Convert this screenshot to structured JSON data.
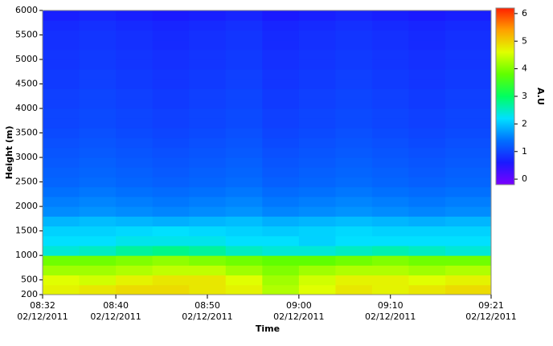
{
  "chart_data": {
    "type": "heatmap",
    "xlabel": "Time",
    "ylabel": "Height (m)",
    "colorbar_label": "A.U",
    "xlim": [
      "08:32",
      "09:21"
    ],
    "xticks": [
      {
        "time": "08:32",
        "date": "02/12/2011"
      },
      {
        "time": "08:40",
        "date": "02/12/2011"
      },
      {
        "time": "08:50",
        "date": "02/12/2011"
      },
      {
        "time": "09:00",
        "date": "02/12/2011"
      },
      {
        "time": "09:10",
        "date": "02/12/2011"
      },
      {
        "time": "09:21",
        "date": "02/12/2011"
      }
    ],
    "ylim": [
      200,
      6000
    ],
    "yticks": [
      200,
      500,
      1000,
      1500,
      2000,
      2500,
      3000,
      3500,
      4000,
      4500,
      5000,
      5500,
      6000
    ],
    "zlim": [
      -0.2,
      6.2
    ],
    "zticks": [
      0,
      1,
      2,
      3,
      4,
      5,
      6
    ],
    "colorscale": [
      "#7a00ff",
      "#1a1aff",
      "#0070ff",
      "#00e0ff",
      "#00ff60",
      "#60ff00",
      "#e0ff00",
      "#ffa000",
      "#ff2000"
    ],
    "x": [
      "08:34",
      "08:38",
      "08:42",
      "08:46",
      "08:50",
      "08:54",
      "08:58",
      "09:02",
      "09:06",
      "09:10",
      "09:14",
      "09:18"
    ],
    "y": [
      300,
      500,
      700,
      900,
      1100,
      1300,
      1500,
      1700,
      1900,
      2100,
      2300,
      2500,
      2700,
      2900,
      3100,
      3300,
      3500,
      3700,
      3900,
      4100,
      4300,
      4500,
      4700,
      4900,
      5100,
      5300,
      5500,
      5700,
      5900
    ],
    "z": [
      [
        4.7,
        4.8,
        4.9,
        4.9,
        4.8,
        4.7,
        4.3,
        4.6,
        4.8,
        4.7,
        4.8,
        4.9
      ],
      [
        4.6,
        4.5,
        4.7,
        4.8,
        4.8,
        4.6,
        4.2,
        4.5,
        4.7,
        4.7,
        4.6,
        4.7
      ],
      [
        4.2,
        4.2,
        4.3,
        4.4,
        4.4,
        4.2,
        4.0,
        4.2,
        4.3,
        4.3,
        4.2,
        4.3
      ],
      [
        3.9,
        3.9,
        4.0,
        4.1,
        4.0,
        3.9,
        3.8,
        3.8,
        3.9,
        4.0,
        3.9,
        3.9
      ],
      [
        2.4,
        2.5,
        2.7,
        2.8,
        2.7,
        2.5,
        2.4,
        2.4,
        2.5,
        2.6,
        2.5,
        2.4
      ],
      [
        2.2,
        2.2,
        2.3,
        2.3,
        2.3,
        2.2,
        2.2,
        2.1,
        2.2,
        2.2,
        2.2,
        2.2
      ],
      [
        2.1,
        2.1,
        2.15,
        2.2,
        2.15,
        2.1,
        2.05,
        2.1,
        2.15,
        2.1,
        2.1,
        2.1
      ],
      [
        1.9,
        1.95,
        1.9,
        1.85,
        1.9,
        1.95,
        1.85,
        1.9,
        1.95,
        1.9,
        1.85,
        1.9
      ],
      [
        1.6,
        1.65,
        1.6,
        1.55,
        1.6,
        1.65,
        1.55,
        1.6,
        1.65,
        1.6,
        1.55,
        1.6
      ],
      [
        1.5,
        1.55,
        1.5,
        1.45,
        1.5,
        1.55,
        1.45,
        1.5,
        1.55,
        1.5,
        1.45,
        1.5
      ],
      [
        1.4,
        1.45,
        1.4,
        1.35,
        1.4,
        1.45,
        1.35,
        1.4,
        1.45,
        1.4,
        1.35,
        1.4
      ],
      [
        1.3,
        1.35,
        1.3,
        1.25,
        1.3,
        1.35,
        1.25,
        1.3,
        1.35,
        1.3,
        1.25,
        1.3
      ],
      [
        1.25,
        1.3,
        1.25,
        1.2,
        1.25,
        1.3,
        1.2,
        1.25,
        1.3,
        1.25,
        1.2,
        1.25
      ],
      [
        1.2,
        1.25,
        1.2,
        1.15,
        1.2,
        1.25,
        1.15,
        1.2,
        1.25,
        1.2,
        1.15,
        1.2
      ],
      [
        1.15,
        1.2,
        1.15,
        1.1,
        1.15,
        1.2,
        1.1,
        1.15,
        1.2,
        1.15,
        1.1,
        1.15
      ],
      [
        1.1,
        1.15,
        1.1,
        1.05,
        1.1,
        1.15,
        1.05,
        1.1,
        1.15,
        1.1,
        1.05,
        1.1
      ],
      [
        1.05,
        1.1,
        1.05,
        1.0,
        1.05,
        1.1,
        1.0,
        1.05,
        1.1,
        1.05,
        1.0,
        1.05
      ],
      [
        1.0,
        1.05,
        1.0,
        0.95,
        1.0,
        1.05,
        0.95,
        1.0,
        1.05,
        1.0,
        0.95,
        1.0
      ],
      [
        1.0,
        1.05,
        1.0,
        0.95,
        1.0,
        1.05,
        0.95,
        1.0,
        1.05,
        1.0,
        0.95,
        1.0
      ],
      [
        0.95,
        1.0,
        0.95,
        0.9,
        0.95,
        1.0,
        0.9,
        0.95,
        1.0,
        0.95,
        0.9,
        0.95
      ],
      [
        0.95,
        1.0,
        0.95,
        0.9,
        0.95,
        1.0,
        0.9,
        0.95,
        1.0,
        0.95,
        0.9,
        0.95
      ],
      [
        0.9,
        0.95,
        0.9,
        0.85,
        0.9,
        0.95,
        0.85,
        0.9,
        0.95,
        0.9,
        0.85,
        0.9
      ],
      [
        0.9,
        0.95,
        0.9,
        0.85,
        0.9,
        0.95,
        0.85,
        0.9,
        0.95,
        0.9,
        0.85,
        0.9
      ],
      [
        0.85,
        0.9,
        0.85,
        0.8,
        0.85,
        0.9,
        0.8,
        0.85,
        0.9,
        0.85,
        0.8,
        0.85
      ],
      [
        0.85,
        0.9,
        0.85,
        0.8,
        0.85,
        0.9,
        0.8,
        0.85,
        0.9,
        0.85,
        0.8,
        0.85
      ],
      [
        0.8,
        0.85,
        0.8,
        0.75,
        0.8,
        0.85,
        0.75,
        0.8,
        0.85,
        0.8,
        0.75,
        0.8
      ],
      [
        0.8,
        0.85,
        0.8,
        0.75,
        0.8,
        0.85,
        0.75,
        0.8,
        0.85,
        0.8,
        0.75,
        0.8
      ],
      [
        0.75,
        0.8,
        0.75,
        0.7,
        0.75,
        0.8,
        0.7,
        0.75,
        0.8,
        0.75,
        0.7,
        0.75
      ],
      [
        0.65,
        0.7,
        0.65,
        0.6,
        0.65,
        0.7,
        0.6,
        0.65,
        0.7,
        0.65,
        0.6,
        0.65
      ]
    ]
  }
}
